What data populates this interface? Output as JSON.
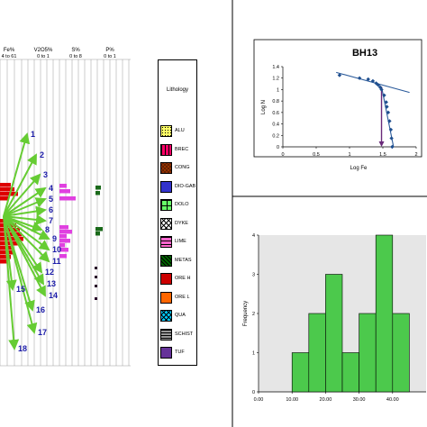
{
  "log_panel": {
    "columns": [
      {
        "name": "Fe%",
        "range": "4 to 61"
      },
      {
        "name": "V2O5%",
        "range": "0 to 1"
      },
      {
        "name": "S%",
        "range": "0 to 8"
      },
      {
        "name": "P%",
        "range": "0 to 1"
      }
    ],
    "sample_numbers": [
      "1",
      "2",
      "3",
      "4",
      "5",
      "6",
      "7",
      "8",
      "9",
      "10",
      "11",
      "12",
      "13",
      "14",
      "15",
      "16",
      "17",
      "18"
    ]
  },
  "lithology_legend": {
    "title": "Lithology",
    "items": [
      {
        "label": "ALU",
        "color": "#ffff66",
        "pattern": "dots"
      },
      {
        "label": "BREC",
        "color": "#ff0066",
        "pattern": "blocks"
      },
      {
        "label": "CONG",
        "color": "#993300",
        "pattern": "circles"
      },
      {
        "label": "DIO-GAB",
        "color": "#3333cc",
        "pattern": "solid"
      },
      {
        "label": "DOLO",
        "color": "#66ff66",
        "pattern": "grid"
      },
      {
        "label": "DYKE",
        "color": "#ffffff",
        "pattern": "cross"
      },
      {
        "label": "LIME",
        "color": "#ff66cc",
        "pattern": "bricks"
      },
      {
        "label": "METAS",
        "color": "#006600",
        "pattern": "hatch"
      },
      {
        "label": "ORE H",
        "color": "#cc0000",
        "pattern": "solid"
      },
      {
        "label": "ORE L",
        "color": "#ff6600",
        "pattern": "solid"
      },
      {
        "label": "QUA",
        "color": "#00ccff",
        "pattern": "cross"
      },
      {
        "label": "SCHIST",
        "color": "#999999",
        "pattern": "lines"
      },
      {
        "label": "TUF",
        "color": "#663399",
        "pattern": "solid"
      }
    ]
  },
  "chart_data": [
    {
      "type": "scatter",
      "title": "BH13",
      "xlabel": "Log Fe",
      "ylabel": "Log N",
      "xlim": [
        0,
        2
      ],
      "ylim": [
        0,
        1.4
      ],
      "xticks": [
        "0",
        "0.5",
        "1",
        "1.5",
        "2"
      ],
      "yticks": [
        "0",
        "0.2",
        "0.4",
        "0.6",
        "0.8",
        "1",
        "1.2",
        "1.4"
      ],
      "x": [
        0.85,
        1.15,
        1.28,
        1.35,
        1.4,
        1.43,
        1.46,
        1.48,
        1.52,
        1.55,
        1.56,
        1.58,
        1.6,
        1.62,
        1.63,
        1.64
      ],
      "y": [
        1.25,
        1.2,
        1.18,
        1.15,
        1.11,
        1.08,
        1.04,
        1.0,
        0.9,
        0.78,
        0.7,
        0.6,
        0.45,
        0.3,
        0.15,
        0.0
      ],
      "threshold_x": 1.48,
      "grid": false
    },
    {
      "type": "bar",
      "xlabel": "Fe%",
      "ylabel": "Frequency",
      "xlim": [
        0,
        50
      ],
      "ylim": [
        0,
        4
      ],
      "xticks": [
        "0.00",
        "10.00",
        "20.00",
        "30.00",
        "40.00"
      ],
      "yticks": [
        "0",
        "1",
        "2",
        "3",
        "4"
      ],
      "bins": [
        [
          5,
          10
        ],
        [
          10,
          15
        ],
        [
          15,
          20
        ],
        [
          20,
          25
        ],
        [
          25,
          30
        ],
        [
          30,
          35
        ],
        [
          35,
          40
        ],
        [
          40,
          45
        ]
      ],
      "values": [
        0,
        1,
        2,
        3,
        1,
        2,
        4,
        2
      ]
    }
  ]
}
